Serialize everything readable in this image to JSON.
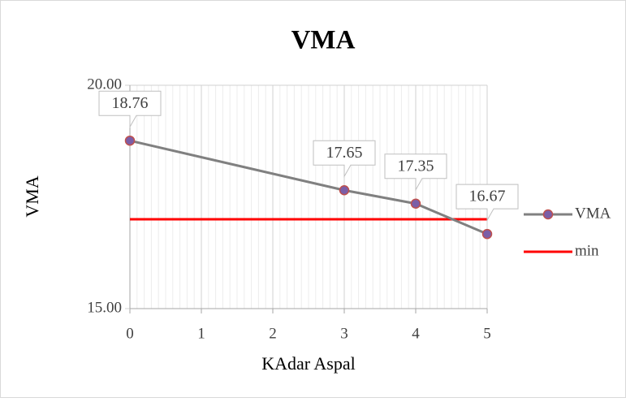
{
  "chart_data": {
    "type": "line",
    "title": "VMA",
    "x_label": "KAdar Aspal",
    "y_label": "VMA",
    "x": [
      0,
      3,
      4,
      5
    ],
    "series": [
      {
        "name": "VMA",
        "color": "#808080",
        "marker_color": "#7b5ea7",
        "values": [
          18.76,
          17.65,
          17.35,
          16.67
        ]
      },
      {
        "name": "min",
        "color": "#ff0000",
        "values": [
          17,
          17,
          17,
          17
        ]
      }
    ],
    "xlim": [
      0,
      5
    ],
    "xticks": [
      0,
      1,
      2,
      3,
      4,
      5
    ],
    "ylim": [
      15,
      20
    ],
    "yticks": [
      {
        "value": 15,
        "label": "15.00"
      },
      {
        "value": 20,
        "label": "20.00"
      }
    ],
    "grid": true,
    "legend": "right"
  }
}
